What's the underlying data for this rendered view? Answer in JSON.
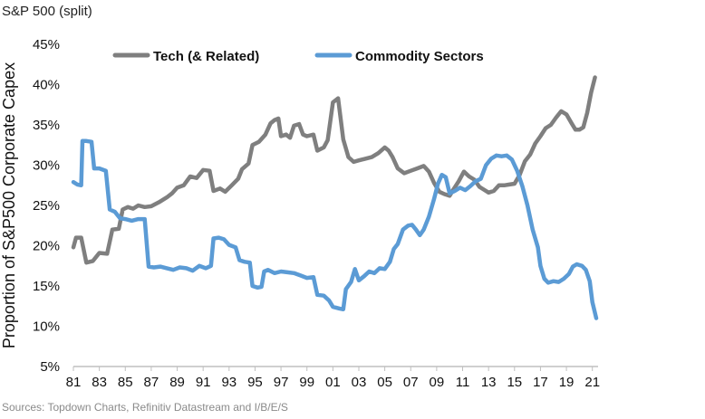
{
  "header": {
    "title": "S&P 500 (split)"
  },
  "footer": {
    "source": "Sources: Topdown Charts, Refinitiv Datastream and I/B/E/S"
  },
  "colors": {
    "tech": "#7f7f7f",
    "commodity": "#5b9bd5",
    "axis": "#bfbfbf"
  },
  "chart_data": {
    "type": "line",
    "title": "S&P 500 (split)",
    "xlabel": "",
    "ylabel": "Proportion of S&P500 Corporate Capex",
    "xlim": [
      1981,
      2021.3
    ],
    "ylim": [
      5,
      45
    ],
    "x_ticks": [
      1981,
      1983,
      1985,
      1987,
      1989,
      1991,
      1993,
      1995,
      1997,
      1999,
      2001,
      2003,
      2005,
      2007,
      2009,
      2011,
      2013,
      2015,
      2017,
      2019,
      2021
    ],
    "x_tick_labels": [
      "81",
      "83",
      "85",
      "87",
      "89",
      "91",
      "93",
      "95",
      "97",
      "99",
      "01",
      "03",
      "05",
      "07",
      "09",
      "11",
      "13",
      "15",
      "17",
      "19",
      "21"
    ],
    "y_ticks": [
      5,
      10,
      15,
      20,
      25,
      30,
      35,
      40,
      45
    ],
    "y_tick_labels": [
      "5%",
      "10%",
      "15%",
      "20%",
      "25%",
      "30%",
      "35%",
      "40%",
      "45%"
    ],
    "legend_position": "top",
    "grid": false,
    "series": [
      {
        "name": "Tech (& Related)",
        "color": "#7f7f7f",
        "points": [
          [
            1981.0,
            19.8
          ],
          [
            1981.2,
            21.0
          ],
          [
            1981.6,
            21.0
          ],
          [
            1982.0,
            17.9
          ],
          [
            1982.5,
            18.1
          ],
          [
            1983.0,
            19.1
          ],
          [
            1983.6,
            19.0
          ],
          [
            1984.0,
            22.0
          ],
          [
            1984.5,
            22.1
          ],
          [
            1984.8,
            24.5
          ],
          [
            1985.2,
            24.8
          ],
          [
            1985.6,
            24.6
          ],
          [
            1986.0,
            25.0
          ],
          [
            1986.5,
            24.8
          ],
          [
            1987.0,
            24.9
          ],
          [
            1987.6,
            25.4
          ],
          [
            1988.2,
            26.0
          ],
          [
            1988.6,
            26.5
          ],
          [
            1989.0,
            27.2
          ],
          [
            1989.5,
            27.5
          ],
          [
            1990.0,
            28.6
          ],
          [
            1990.5,
            28.4
          ],
          [
            1991.0,
            29.4
          ],
          [
            1991.5,
            29.3
          ],
          [
            1991.8,
            26.8
          ],
          [
            1992.3,
            27.1
          ],
          [
            1992.7,
            26.7
          ],
          [
            1993.2,
            27.5
          ],
          [
            1993.7,
            28.3
          ],
          [
            1994.0,
            29.5
          ],
          [
            1994.5,
            30.2
          ],
          [
            1994.8,
            32.5
          ],
          [
            1995.3,
            32.9
          ],
          [
            1995.8,
            33.8
          ],
          [
            1996.2,
            35.2
          ],
          [
            1996.5,
            35.6
          ],
          [
            1996.8,
            35.8
          ],
          [
            1997.0,
            33.6
          ],
          [
            1997.4,
            33.8
          ],
          [
            1997.7,
            33.4
          ],
          [
            1998.0,
            34.9
          ],
          [
            1998.4,
            35.1
          ],
          [
            1998.7,
            33.8
          ],
          [
            1999.0,
            33.6
          ],
          [
            1999.5,
            33.8
          ],
          [
            1999.8,
            31.8
          ],
          [
            2000.3,
            32.2
          ],
          [
            2000.6,
            33.1
          ],
          [
            2001.0,
            37.8
          ],
          [
            2001.4,
            38.3
          ],
          [
            2001.8,
            33.2
          ],
          [
            2002.2,
            31.0
          ],
          [
            2002.6,
            30.4
          ],
          [
            2003.0,
            30.6
          ],
          [
            2003.5,
            30.8
          ],
          [
            2004.0,
            31.0
          ],
          [
            2004.5,
            31.5
          ],
          [
            2005.0,
            32.2
          ],
          [
            2005.3,
            31.8
          ],
          [
            2005.6,
            31.0
          ],
          [
            2006.0,
            29.6
          ],
          [
            2006.5,
            29.0
          ],
          [
            2007.0,
            29.3
          ],
          [
            2007.5,
            29.6
          ],
          [
            2008.0,
            29.9
          ],
          [
            2008.4,
            29.2
          ],
          [
            2008.8,
            27.8
          ],
          [
            2009.2,
            26.7
          ],
          [
            2009.6,
            26.4
          ],
          [
            2010.0,
            26.2
          ],
          [
            2010.3,
            27.0
          ],
          [
            2010.7,
            28.0
          ],
          [
            2011.1,
            29.2
          ],
          [
            2011.5,
            28.6
          ],
          [
            2011.9,
            28.2
          ],
          [
            2012.3,
            27.3
          ],
          [
            2012.7,
            26.9
          ],
          [
            2013.0,
            26.6
          ],
          [
            2013.4,
            26.8
          ],
          [
            2013.8,
            27.5
          ],
          [
            2014.2,
            27.5
          ],
          [
            2014.6,
            27.6
          ],
          [
            2015.0,
            27.7
          ],
          [
            2015.4,
            28.8
          ],
          [
            2015.8,
            30.5
          ],
          [
            2016.2,
            31.3
          ],
          [
            2016.6,
            32.7
          ],
          [
            2017.0,
            33.6
          ],
          [
            2017.4,
            34.6
          ],
          [
            2017.8,
            35.0
          ],
          [
            2018.2,
            35.9
          ],
          [
            2018.6,
            36.7
          ],
          [
            2019.0,
            36.3
          ],
          [
            2019.4,
            35.2
          ],
          [
            2019.7,
            34.4
          ],
          [
            2020.0,
            34.4
          ],
          [
            2020.3,
            34.7
          ],
          [
            2020.6,
            36.5
          ],
          [
            2020.9,
            39.0
          ],
          [
            2021.2,
            40.9
          ]
        ]
      },
      {
        "name": "Commodity Sectors",
        "color": "#5b9bd5",
        "points": [
          [
            1981.0,
            27.9
          ],
          [
            1981.3,
            27.6
          ],
          [
            1981.6,
            27.5
          ],
          [
            1981.7,
            33.0
          ],
          [
            1982.0,
            33.0
          ],
          [
            1982.4,
            32.9
          ],
          [
            1982.6,
            29.6
          ],
          [
            1983.0,
            29.6
          ],
          [
            1983.5,
            29.3
          ],
          [
            1983.8,
            24.5
          ],
          [
            1984.2,
            24.2
          ],
          [
            1984.6,
            23.4
          ],
          [
            1985.0,
            23.3
          ],
          [
            1985.5,
            23.1
          ],
          [
            1986.0,
            23.3
          ],
          [
            1986.5,
            23.3
          ],
          [
            1986.8,
            17.4
          ],
          [
            1987.2,
            17.3
          ],
          [
            1987.7,
            17.4
          ],
          [
            1988.2,
            17.2
          ],
          [
            1988.7,
            17.0
          ],
          [
            1989.2,
            17.3
          ],
          [
            1989.7,
            17.2
          ],
          [
            1990.2,
            16.9
          ],
          [
            1990.7,
            17.5
          ],
          [
            1991.2,
            17.2
          ],
          [
            1991.6,
            17.5
          ],
          [
            1991.8,
            20.9
          ],
          [
            1992.2,
            21.0
          ],
          [
            1992.6,
            20.8
          ],
          [
            1993.0,
            20.1
          ],
          [
            1993.5,
            19.8
          ],
          [
            1993.8,
            18.2
          ],
          [
            1994.2,
            18.0
          ],
          [
            1994.6,
            17.9
          ],
          [
            1994.8,
            15.0
          ],
          [
            1995.2,
            14.8
          ],
          [
            1995.5,
            14.9
          ],
          [
            1995.7,
            16.8
          ],
          [
            1996.0,
            17.0
          ],
          [
            1996.5,
            16.6
          ],
          [
            1997.0,
            16.8
          ],
          [
            1997.5,
            16.7
          ],
          [
            1998.0,
            16.6
          ],
          [
            1998.5,
            16.3
          ],
          [
            1999.0,
            16.0
          ],
          [
            1999.5,
            16.1
          ],
          [
            1999.8,
            13.9
          ],
          [
            2000.3,
            13.8
          ],
          [
            2000.7,
            13.2
          ],
          [
            2001.0,
            12.4
          ],
          [
            2001.5,
            12.2
          ],
          [
            2001.8,
            12.1
          ],
          [
            2002.0,
            14.6
          ],
          [
            2002.4,
            15.5
          ],
          [
            2002.7,
            17.1
          ],
          [
            2003.0,
            15.7
          ],
          [
            2003.4,
            16.2
          ],
          [
            2003.8,
            16.8
          ],
          [
            2004.2,
            16.6
          ],
          [
            2004.6,
            17.2
          ],
          [
            2005.0,
            17.1
          ],
          [
            2005.4,
            18.0
          ],
          [
            2005.7,
            19.6
          ],
          [
            2006.0,
            20.2
          ],
          [
            2006.4,
            22.0
          ],
          [
            2006.8,
            22.5
          ],
          [
            2007.1,
            22.6
          ],
          [
            2007.4,
            22.0
          ],
          [
            2007.7,
            21.3
          ],
          [
            2008.0,
            22.0
          ],
          [
            2008.4,
            23.6
          ],
          [
            2008.8,
            25.8
          ],
          [
            2009.1,
            27.7
          ],
          [
            2009.4,
            28.8
          ],
          [
            2009.7,
            28.5
          ],
          [
            2010.0,
            26.5
          ],
          [
            2010.4,
            26.8
          ],
          [
            2010.8,
            27.2
          ],
          [
            2011.2,
            26.9
          ],
          [
            2011.6,
            27.4
          ],
          [
            2012.0,
            28.0
          ],
          [
            2012.4,
            28.3
          ],
          [
            2012.8,
            30.0
          ],
          [
            2013.2,
            30.8
          ],
          [
            2013.6,
            31.2
          ],
          [
            2014.0,
            31.1
          ],
          [
            2014.4,
            31.2
          ],
          [
            2014.8,
            30.7
          ],
          [
            2015.2,
            29.3
          ],
          [
            2015.6,
            27.4
          ],
          [
            2016.0,
            25.0
          ],
          [
            2016.4,
            22.0
          ],
          [
            2016.8,
            19.8
          ],
          [
            2017.0,
            17.5
          ],
          [
            2017.3,
            15.9
          ],
          [
            2017.6,
            15.4
          ],
          [
            2018.0,
            15.6
          ],
          [
            2018.4,
            15.5
          ],
          [
            2018.8,
            15.9
          ],
          [
            2019.2,
            16.5
          ],
          [
            2019.5,
            17.4
          ],
          [
            2019.8,
            17.7
          ],
          [
            2020.2,
            17.5
          ],
          [
            2020.5,
            17.0
          ],
          [
            2020.8,
            15.6
          ],
          [
            2021.0,
            13.0
          ],
          [
            2021.3,
            11.0
          ]
        ]
      }
    ]
  }
}
